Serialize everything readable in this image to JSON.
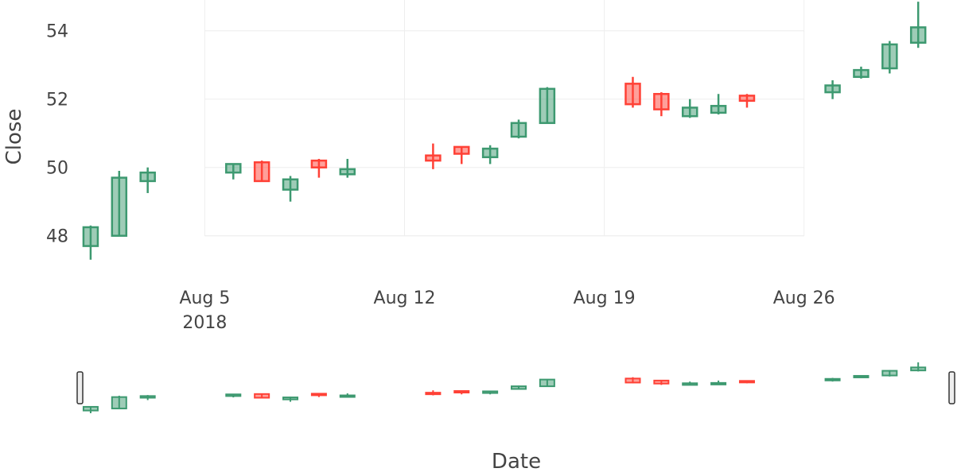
{
  "chart_data": {
    "type": "candlestick",
    "title": "",
    "xlabel": "Date",
    "ylabel": "Close",
    "grid": true,
    "range_slider": true,
    "colors": {
      "increasing": "#3d9970",
      "decreasing": "#ff4136",
      "grid": "#eeeeee",
      "text": "#444444"
    },
    "x_ticks": [
      {
        "date": "2018-08-05",
        "label": "Aug 5",
        "sublabel": "2018"
      },
      {
        "date": "2018-08-12",
        "label": "Aug 12",
        "sublabel": ""
      },
      {
        "date": "2018-08-19",
        "label": "Aug 19",
        "sublabel": ""
      },
      {
        "date": "2018-08-26",
        "label": "Aug 26",
        "sublabel": ""
      }
    ],
    "y_ticks": [
      48,
      50,
      52,
      54
    ],
    "ylim": [
      46.9,
      54.9
    ],
    "xlim": [
      "2018-07-31T12:00",
      "2018-08-31T12:00"
    ],
    "candles": [
      {
        "date": "2018-08-01",
        "open": 47.7,
        "high": 48.3,
        "low": 47.3,
        "close": 48.25
      },
      {
        "date": "2018-08-02",
        "open": 48.0,
        "high": 49.9,
        "low": 48.0,
        "close": 49.7
      },
      {
        "date": "2018-08-03",
        "open": 49.6,
        "high": 50.0,
        "low": 49.25,
        "close": 49.85
      },
      {
        "date": "2018-08-06",
        "open": 49.85,
        "high": 50.1,
        "low": 49.65,
        "close": 50.1
      },
      {
        "date": "2018-08-07",
        "open": 50.15,
        "high": 50.2,
        "low": 49.6,
        "close": 49.6
      },
      {
        "date": "2018-08-08",
        "open": 49.35,
        "high": 49.75,
        "low": 49.0,
        "close": 49.65
      },
      {
        "date": "2018-08-09",
        "open": 50.2,
        "high": 50.25,
        "low": 49.7,
        "close": 50.0
      },
      {
        "date": "2018-08-10",
        "open": 49.8,
        "high": 50.25,
        "low": 49.7,
        "close": 49.95
      },
      {
        "date": "2018-08-13",
        "open": 50.35,
        "high": 50.7,
        "low": 49.95,
        "close": 50.2
      },
      {
        "date": "2018-08-14",
        "open": 50.6,
        "high": 50.6,
        "low": 50.1,
        "close": 50.4
      },
      {
        "date": "2018-08-15",
        "open": 50.3,
        "high": 50.65,
        "low": 50.1,
        "close": 50.55
      },
      {
        "date": "2018-08-16",
        "open": 50.9,
        "high": 51.4,
        "low": 50.85,
        "close": 51.3
      },
      {
        "date": "2018-08-17",
        "open": 51.3,
        "high": 52.35,
        "low": 51.3,
        "close": 52.3
      },
      {
        "date": "2018-08-20",
        "open": 52.45,
        "high": 52.65,
        "low": 51.75,
        "close": 51.85
      },
      {
        "date": "2018-08-21",
        "open": 52.15,
        "high": 52.2,
        "low": 51.5,
        "close": 51.7
      },
      {
        "date": "2018-08-22",
        "open": 51.5,
        "high": 52.0,
        "low": 51.45,
        "close": 51.75
      },
      {
        "date": "2018-08-23",
        "open": 51.6,
        "high": 52.15,
        "low": 51.55,
        "close": 51.8
      },
      {
        "date": "2018-08-24",
        "open": 52.1,
        "high": 52.15,
        "low": 51.75,
        "close": 51.95
      },
      {
        "date": "2018-08-27",
        "open": 52.2,
        "high": 52.55,
        "low": 52.0,
        "close": 52.4
      },
      {
        "date": "2018-08-28",
        "open": 52.65,
        "high": 52.95,
        "low": 52.6,
        "close": 52.85
      },
      {
        "date": "2018-08-29",
        "open": 52.9,
        "high": 53.7,
        "low": 52.75,
        "close": 53.6
      },
      {
        "date": "2018-08-30",
        "open": 53.65,
        "high": 54.85,
        "low": 53.5,
        "close": 54.1
      }
    ]
  }
}
